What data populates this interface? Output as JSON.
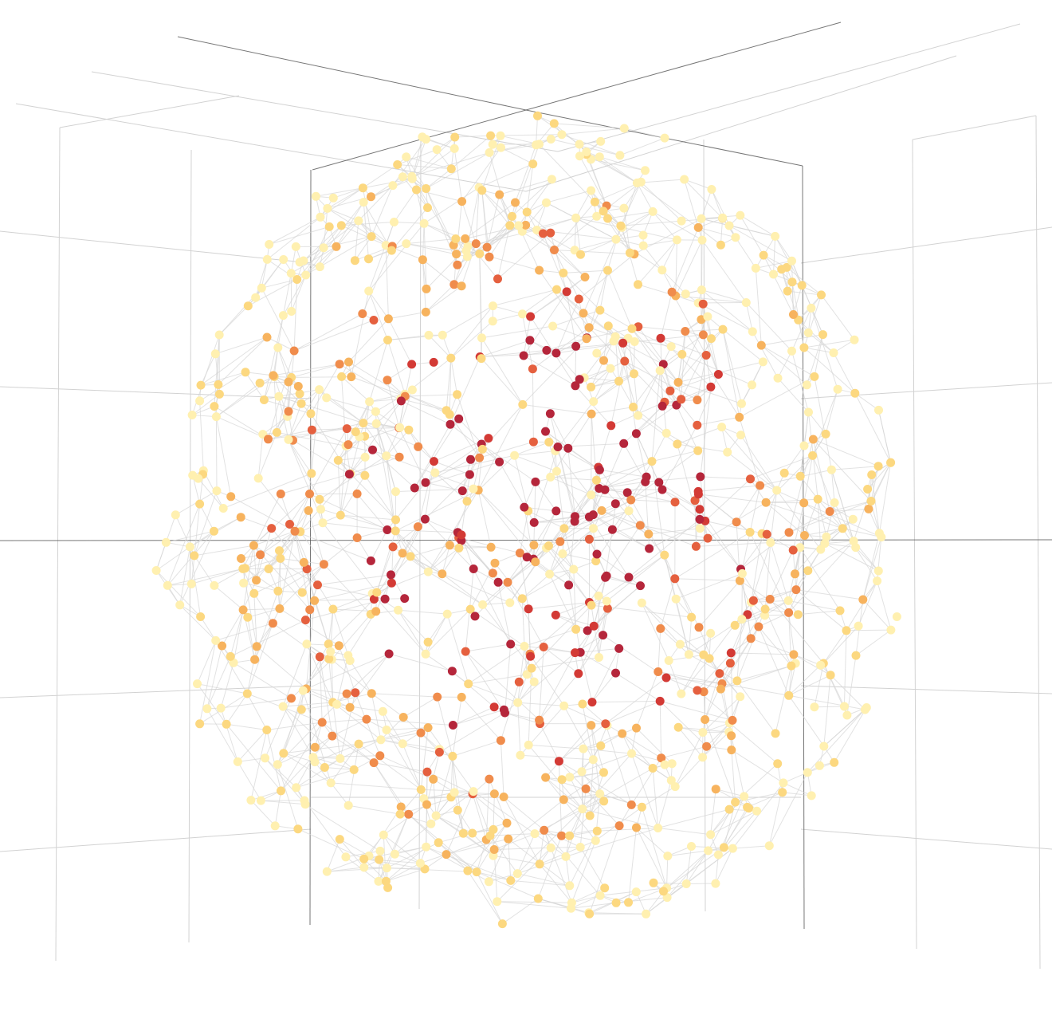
{
  "palette": [
    "#b5263b",
    "#d33a35",
    "#e5603f",
    "#f08c4c",
    "#f7b35e",
    "#fcd880",
    "#fff0b0"
  ],
  "edge_color": "#d6d6d6",
  "grid_color": "#d2d2d2",
  "axis_color": "#555555"
}
